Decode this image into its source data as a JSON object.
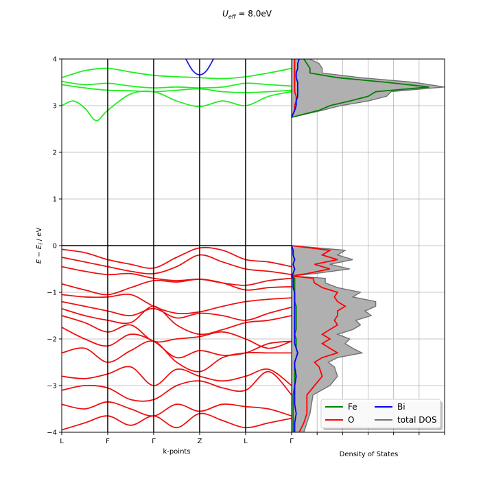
{
  "chart_data": [
    {
      "type": "line",
      "panel": "band-structure",
      "title": "U_eff = 8.0eV",
      "title_parts": {
        "u": "U",
        "sub": "eff",
        "rest": " = 8.0eV"
      },
      "xlabel": "k-points",
      "ylabel": "E − E_f  /  eV",
      "ylabel_parts": {
        "e": "E",
        "minus": " − ",
        "e2": "E",
        "sub": "f",
        "rest": "   /   eV"
      },
      "xticks": [
        "L",
        "F",
        "Γ",
        "Z",
        "L",
        "Γ"
      ],
      "ylim": [
        -4,
        4
      ],
      "yticks": [
        "−4",
        "−3",
        "−2",
        "−1",
        "0",
        "1",
        "2",
        "3",
        "4"
      ],
      "grid": true,
      "fermi_level": 0,
      "series": [
        {
          "color": "#22ee22",
          "x": [
            0,
            0.5,
            1,
            1.5,
            2,
            2.5,
            3,
            3.5,
            4,
            4.5,
            5
          ],
          "values": [
            3.6,
            3.75,
            3.8,
            3.72,
            3.65,
            3.62,
            3.6,
            3.58,
            3.62,
            3.7,
            3.8
          ]
        },
        {
          "color": "#22ee22",
          "x": [
            0,
            0.5,
            1,
            1.5,
            2,
            2.5,
            3,
            3.5,
            4,
            4.5,
            5
          ],
          "values": [
            3.52,
            3.45,
            3.48,
            3.42,
            3.38,
            3.4,
            3.38,
            3.4,
            3.48,
            3.45,
            3.42
          ]
        },
        {
          "color": "#22ee22",
          "x": [
            0,
            0.5,
            1,
            1.5,
            2,
            2.5,
            3,
            3.5,
            4,
            4.5,
            5
          ],
          "values": [
            3.45,
            3.38,
            3.33,
            3.32,
            3.3,
            3.33,
            3.36,
            3.3,
            3.28,
            3.3,
            3.33
          ]
        },
        {
          "color": "#22ee22",
          "x": [
            0,
            0.25,
            0.5,
            0.75,
            1,
            1.5,
            2,
            2.5,
            3,
            3.5,
            4,
            4.5,
            5
          ],
          "values": [
            3.0,
            3.1,
            2.95,
            2.68,
            2.9,
            3.25,
            3.3,
            3.1,
            2.98,
            3.1,
            3.0,
            3.2,
            3.3
          ]
        },
        {
          "color": "#2222dd",
          "x": [
            2.7,
            2.85,
            3.0,
            3.15,
            3.3
          ],
          "values": [
            4.0,
            3.75,
            3.66,
            3.75,
            4.0
          ]
        },
        {
          "color": "#ee1111",
          "x": [
            0,
            0.5,
            1,
            1.5,
            2,
            2.5,
            3,
            3.5,
            4,
            4.5,
            5
          ],
          "values": [
            -0.08,
            -0.15,
            -0.3,
            -0.4,
            -0.48,
            -0.25,
            -0.05,
            -0.1,
            -0.3,
            -0.35,
            -0.45
          ]
        },
        {
          "color": "#ee1111",
          "x": [
            0,
            0.5,
            1,
            1.5,
            2,
            2.5,
            3,
            3.5,
            4,
            4.5,
            5
          ],
          "values": [
            -0.25,
            -0.35,
            -0.45,
            -0.55,
            -0.6,
            -0.45,
            -0.2,
            -0.35,
            -0.5,
            -0.55,
            -0.62
          ]
        },
        {
          "color": "#ee1111",
          "x": [
            0,
            0.5,
            1,
            1.5,
            2,
            2.5,
            3,
            3.5,
            4,
            4.5,
            5
          ],
          "values": [
            -0.45,
            -0.55,
            -0.62,
            -0.6,
            -0.7,
            -0.75,
            -0.72,
            -0.8,
            -0.85,
            -0.75,
            -0.7
          ]
        },
        {
          "color": "#ee1111",
          "x": [
            0,
            0.5,
            1,
            1.5,
            2,
            2.5,
            3,
            3.5,
            4,
            4.5,
            5
          ],
          "values": [
            -0.82,
            -0.95,
            -1.05,
            -0.9,
            -0.75,
            -0.78,
            -0.72,
            -0.8,
            -0.95,
            -0.9,
            -0.88
          ]
        },
        {
          "color": "#ee1111",
          "x": [
            0,
            0.5,
            1,
            1.5,
            2,
            2.5,
            3,
            3.5,
            4,
            4.5,
            5
          ],
          "values": [
            -1.05,
            -1.1,
            -1.1,
            -1.05,
            -1.3,
            -1.45,
            -1.42,
            -1.3,
            -1.2,
            -1.15,
            -1.12
          ]
        },
        {
          "color": "#ee1111",
          "x": [
            0,
            0.5,
            1,
            1.5,
            2,
            2.5,
            3,
            3.5,
            4,
            4.5,
            5
          ],
          "values": [
            -1.2,
            -1.3,
            -1.4,
            -1.5,
            -1.35,
            -1.55,
            -1.45,
            -1.5,
            -1.6,
            -1.45,
            -1.32
          ]
        },
        {
          "color": "#ee1111",
          "x": [
            0,
            0.5,
            1,
            1.5,
            2,
            2.5,
            3,
            3.5,
            4,
            4.5,
            5
          ],
          "values": [
            -1.35,
            -1.5,
            -1.6,
            -1.65,
            -1.3,
            -1.7,
            -1.9,
            -1.8,
            -1.65,
            -1.6,
            -1.5
          ]
        },
        {
          "color": "#ee1111",
          "x": [
            0,
            0.5,
            1,
            1.5,
            2,
            2.5,
            3,
            3.5,
            4,
            4.5,
            5
          ],
          "values": [
            -1.5,
            -1.65,
            -1.85,
            -1.7,
            -2.05,
            -2.0,
            -1.95,
            -1.85,
            -2.0,
            -2.2,
            -2.05
          ]
        },
        {
          "color": "#ee1111",
          "x": [
            0,
            0.5,
            1,
            1.5,
            2,
            2.5,
            3,
            3.5,
            4,
            4.5,
            5
          ],
          "values": [
            -1.75,
            -2.0,
            -2.15,
            -1.9,
            -2.05,
            -2.4,
            -2.25,
            -2.35,
            -2.3,
            -2.1,
            -2.05
          ]
        },
        {
          "color": "#ee1111",
          "x": [
            0,
            0.5,
            1,
            1.5,
            2,
            2.5,
            3,
            3.5,
            4,
            4.5,
            5
          ],
          "values": [
            -2.3,
            -2.2,
            -2.5,
            -2.25,
            -2.05,
            -2.5,
            -2.7,
            -2.4,
            -2.3,
            -2.3,
            -2.3
          ]
        },
        {
          "color": "#ee1111",
          "x": [
            0,
            0.5,
            1,
            1.5,
            2,
            2.5,
            3,
            3.5,
            4,
            4.5,
            5
          ],
          "values": [
            -2.8,
            -2.85,
            -2.75,
            -2.6,
            -3.0,
            -2.65,
            -2.8,
            -2.9,
            -2.8,
            -2.65,
            -3.0
          ]
        },
        {
          "color": "#ee1111",
          "x": [
            0,
            0.5,
            1,
            1.5,
            2,
            2.5,
            3,
            3.5,
            4,
            4.5,
            5
          ],
          "values": [
            -3.1,
            -3.0,
            -3.05,
            -3.3,
            -3.3,
            -3.0,
            -2.9,
            -3.05,
            -3.1,
            -2.7,
            -3.2
          ]
        },
        {
          "color": "#ee1111",
          "x": [
            0,
            0.5,
            1,
            1.5,
            2,
            2.5,
            3,
            3.5,
            4,
            4.5,
            5
          ],
          "values": [
            -3.4,
            -3.5,
            -3.35,
            -3.5,
            -3.65,
            -3.4,
            -3.55,
            -3.4,
            -3.45,
            -3.5,
            -3.65
          ]
        },
        {
          "color": "#ee1111",
          "x": [
            0,
            0.5,
            1,
            1.5,
            2,
            2.5,
            3,
            3.5,
            4,
            4.5,
            5
          ],
          "values": [
            -3.95,
            -3.8,
            -3.65,
            -3.85,
            -3.65,
            -3.9,
            -3.6,
            -3.75,
            -3.9,
            -3.8,
            -3.7
          ]
        }
      ]
    },
    {
      "type": "area",
      "panel": "density-of-states",
      "xlabel": "Density of States",
      "ylim": [
        -4,
        4
      ],
      "grid": true,
      "legend_position": "bottom-right",
      "legend": [
        {
          "name": "Fe",
          "color": "#008000"
        },
        {
          "name": "O",
          "color": "#ff0000"
        },
        {
          "name": "Bi",
          "color": "#0000ff"
        },
        {
          "name": "total DOS",
          "color": "#707070"
        }
      ],
      "energy": [
        -4,
        -3.8,
        -3.6,
        -3.4,
        -3.2,
        -3.0,
        -2.8,
        -2.6,
        -2.5,
        -2.4,
        -2.3,
        -2.2,
        -2.1,
        -2.0,
        -1.9,
        -1.8,
        -1.7,
        -1.6,
        -1.5,
        -1.4,
        -1.3,
        -1.2,
        -1.1,
        -1.0,
        -0.9,
        -0.8,
        -0.7,
        -0.65,
        -0.6,
        -0.5,
        -0.4,
        -0.3,
        -0.2,
        -0.1,
        0,
        2.75,
        2.9,
        3.0,
        3.1,
        3.2,
        3.3,
        3.4,
        3.5,
        3.6,
        3.7,
        3.8,
        3.9,
        4.0
      ],
      "series": [
        {
          "name": "total DOS",
          "values": [
            0.08,
            0.1,
            0.12,
            0.13,
            0.14,
            0.25,
            0.3,
            0.28,
            0.24,
            0.3,
            0.46,
            0.4,
            0.35,
            0.38,
            0.3,
            0.4,
            0.45,
            0.42,
            0.52,
            0.48,
            0.55,
            0.55,
            0.4,
            0.45,
            0.3,
            0.22,
            0.22,
            0.0,
            0.15,
            0.38,
            0.25,
            0.4,
            0.3,
            0.35,
            0.0,
            0.0,
            0.2,
            0.32,
            0.5,
            0.62,
            0.65,
            1.0,
            0.8,
            0.45,
            0.2,
            0.2,
            0.18,
            0.12
          ]
        },
        {
          "name": "O",
          "values": [
            0.05,
            0.08,
            0.1,
            0.1,
            0.1,
            0.15,
            0.2,
            0.18,
            0.15,
            0.2,
            0.3,
            0.25,
            0.2,
            0.25,
            0.2,
            0.25,
            0.3,
            0.28,
            0.3,
            0.3,
            0.35,
            0.3,
            0.28,
            0.3,
            0.2,
            0.15,
            0.14,
            0.0,
            0.1,
            0.25,
            0.15,
            0.3,
            0.2,
            0.25,
            0.0,
            0.0,
            0.02,
            0.02,
            0.03,
            0.03,
            0.02,
            0.02,
            0.02,
            0.02,
            0.02,
            0.02,
            0.02,
            0.02
          ]
        },
        {
          "name": "Fe",
          "values": [
            0.01,
            0.01,
            0.01,
            0.01,
            0.01,
            0.02,
            0.02,
            0.02,
            0.02,
            0.03,
            0.04,
            0.03,
            0.03,
            0.03,
            0.02,
            0.03,
            0.03,
            0.03,
            0.03,
            0.03,
            0.03,
            0.02,
            0.02,
            0.02,
            0.02,
            0.02,
            0.02,
            0.0,
            0.01,
            0.02,
            0.01,
            0.02,
            0.01,
            0.01,
            0.0,
            0.0,
            0.18,
            0.25,
            0.38,
            0.5,
            0.55,
            0.9,
            0.62,
            0.3,
            0.12,
            0.12,
            0.1,
            0.08
          ]
        },
        {
          "name": "Bi",
          "values": [
            0.02,
            0.02,
            0.03,
            0.02,
            0.02,
            0.02,
            0.03,
            0.02,
            0.02,
            0.03,
            0.04,
            0.03,
            0.02,
            0.02,
            0.02,
            0.02,
            0.02,
            0.02,
            0.02,
            0.02,
            0.02,
            0.02,
            0.02,
            0.02,
            0.01,
            0.01,
            0.01,
            0.0,
            0.01,
            0.02,
            0.01,
            0.02,
            0.01,
            0.01,
            0.0,
            0.0,
            0.02,
            0.03,
            0.03,
            0.04,
            0.04,
            0.04,
            0.04,
            0.03,
            0.03,
            0.04,
            0.04,
            0.05
          ]
        }
      ]
    }
  ]
}
